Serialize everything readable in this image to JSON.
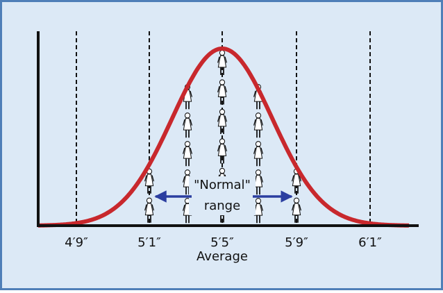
{
  "x_labels": [
    "4′9″",
    "5′1″",
    "5′5″",
    "5′9″",
    "6′1″"
  ],
  "average_label": "Average",
  "range_label": {
    "line1": "\"Normal\"",
    "line2": "range"
  }
}
